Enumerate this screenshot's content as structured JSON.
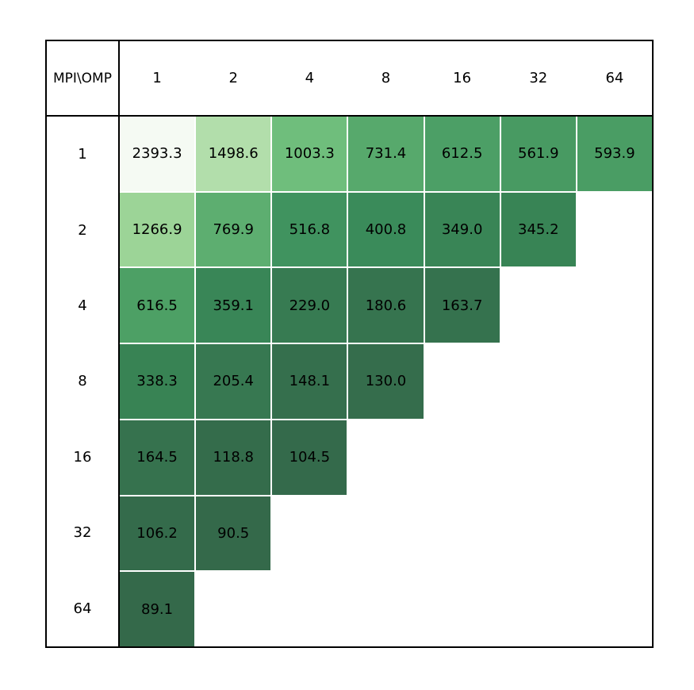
{
  "chart_data": {
    "type": "heatmap",
    "title": "",
    "corner_label": "MPI\\OMP",
    "row_axis_name": "MPI",
    "col_axis_name": "OMP",
    "col_labels": [
      "1",
      "2",
      "4",
      "8",
      "16",
      "32",
      "64"
    ],
    "row_labels": [
      "1",
      "2",
      "4",
      "8",
      "16",
      "32",
      "64"
    ],
    "legend": "none",
    "grid_line_color": "#ffffff",
    "border_color": "#000000",
    "background_color": "#ffffff",
    "text_color": "#000000",
    "colormap_note": "green scale: low values dark green, high values near white",
    "cells": [
      [
        {
          "value": "2393.3",
          "color": "#f5faf3"
        },
        {
          "value": "1498.6",
          "color": "#b2deab"
        },
        {
          "value": "1003.3",
          "color": "#6fbe7c"
        },
        {
          "value": "731.4",
          "color": "#57a96c"
        },
        {
          "value": "612.5",
          "color": "#4c9f66"
        },
        {
          "value": "561.9",
          "color": "#489a62"
        },
        {
          "value": "593.9",
          "color": "#4a9d64"
        }
      ],
      [
        {
          "value": "1266.9",
          "color": "#9cd497"
        },
        {
          "value": "769.9",
          "color": "#5dae70"
        },
        {
          "value": "516.8",
          "color": "#40935f"
        },
        {
          "value": "400.8",
          "color": "#3a8b5a"
        },
        {
          "value": "349.0",
          "color": "#398556"
        },
        {
          "value": "345.2",
          "color": "#388455"
        }
      ],
      [
        {
          "value": "616.5",
          "color": "#4da065"
        },
        {
          "value": "359.1",
          "color": "#398657"
        },
        {
          "value": "229.0",
          "color": "#377b52"
        },
        {
          "value": "180.6",
          "color": "#36744f"
        },
        {
          "value": "163.7",
          "color": "#35724e"
        }
      ],
      [
        {
          "value": "338.3",
          "color": "#388354"
        },
        {
          "value": "205.4",
          "color": "#377851"
        },
        {
          "value": "148.1",
          "color": "#356f4d"
        },
        {
          "value": "130.0",
          "color": "#356d4c"
        }
      ],
      [
        {
          "value": "164.5",
          "color": "#36724e"
        },
        {
          "value": "118.8",
          "color": "#346c4b"
        },
        {
          "value": "104.5",
          "color": "#346a4b"
        }
      ],
      [
        {
          "value": "106.2",
          "color": "#346b4b"
        },
        {
          "value": "90.5",
          "color": "#34694a"
        }
      ],
      [
        {
          "value": "89.1",
          "color": "#34694a"
        }
      ]
    ]
  }
}
